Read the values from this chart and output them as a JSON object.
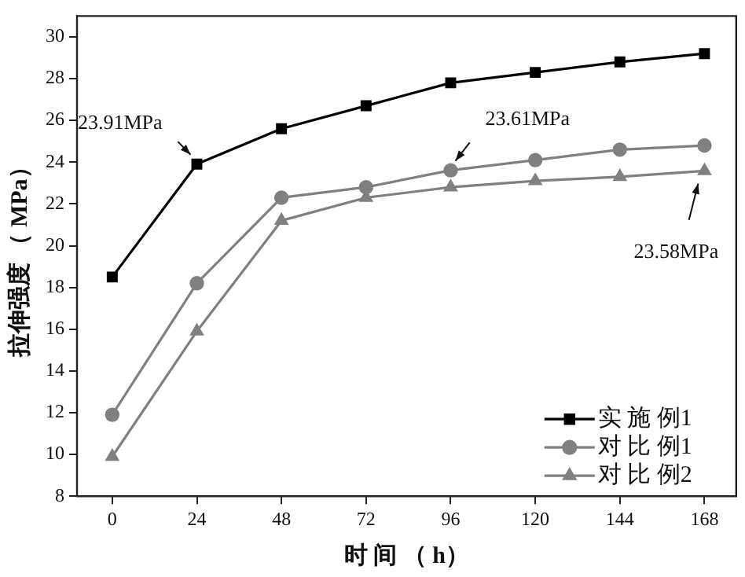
{
  "chart_data": {
    "type": "line",
    "xlabel": "时 间 （ h）",
    "ylabel": "拉伸强度 （ MPa）",
    "x": [
      0,
      24,
      48,
      72,
      96,
      120,
      144,
      168
    ],
    "series": [
      {
        "name": "实 施 例1",
        "color": "#000000",
        "marker": "square",
        "values": [
          18.5,
          23.91,
          25.6,
          26.7,
          27.8,
          28.3,
          28.8,
          29.2
        ]
      },
      {
        "name": "对 比 例1",
        "color": "#808080",
        "marker": "circle",
        "values": [
          11.9,
          18.2,
          22.3,
          22.8,
          23.61,
          24.1,
          24.6,
          24.8
        ]
      },
      {
        "name": "对 比 例2",
        "color": "#808080",
        "marker": "triangle",
        "values": [
          9.9,
          15.9,
          21.2,
          22.3,
          22.8,
          23.1,
          23.3,
          23.58
        ]
      }
    ],
    "xlim": [
      -10,
      177
    ],
    "xticks": [
      0,
      24,
      48,
      72,
      96,
      120,
      144,
      168
    ],
    "ylim": [
      8,
      31
    ],
    "yticks": [
      8,
      10,
      12,
      14,
      16,
      18,
      20,
      22,
      24,
      26,
      28,
      30
    ],
    "grid": false,
    "legend": "bottom right",
    "line_style": "solid",
    "annotations": [
      {
        "text": "23.91MPa",
        "x": 24,
        "y": 23.91
      },
      {
        "text": "23.61MPa",
        "x": 96,
        "y": 23.61
      },
      {
        "text": "23.58MPa",
        "x": 168,
        "y": 23.58
      }
    ]
  }
}
